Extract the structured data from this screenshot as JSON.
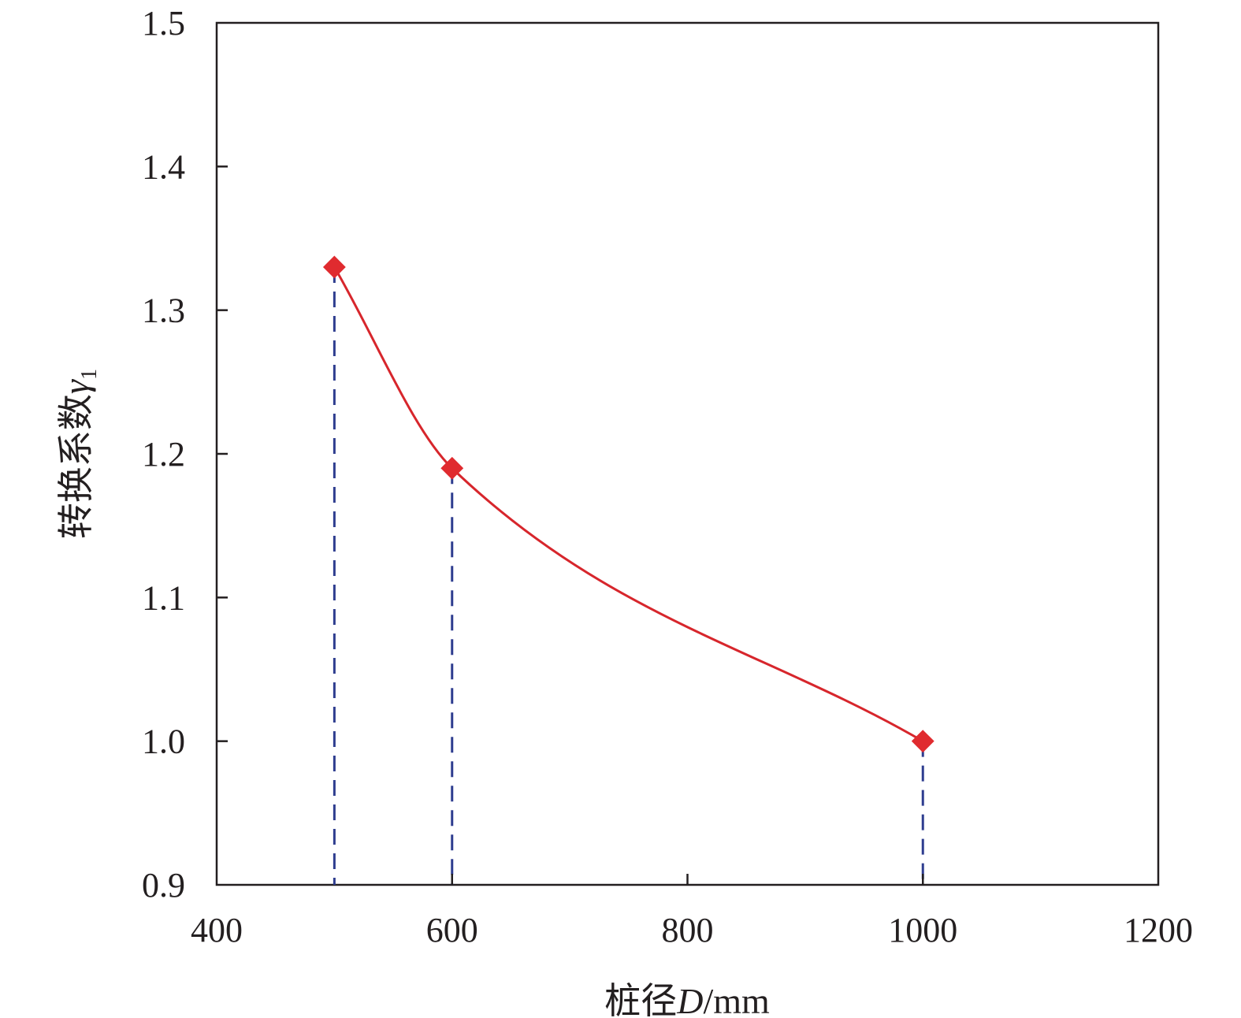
{
  "chart_data": {
    "type": "line",
    "x": [
      500,
      600,
      1000
    ],
    "series": [
      {
        "values": [
          1.33,
          1.19,
          1.0
        ]
      }
    ],
    "xlabel": {
      "prefix": "桩径",
      "variable": "D",
      "unit": "/mm"
    },
    "ylabel": {
      "prefix": "转换系数",
      "variable": "γ",
      "subscript": "1"
    },
    "xlim": [
      400,
      1200
    ],
    "ylim": [
      0.9,
      1.5
    ],
    "xticks": [
      400,
      600,
      800,
      1000,
      1200
    ],
    "xtick_labels": [
      "400",
      "600",
      "800",
      "1000",
      "1200"
    ],
    "yticks": [
      0.9,
      1.0,
      1.1,
      1.2,
      1.3,
      1.4,
      1.5
    ],
    "ytick_labels": [
      "0.9",
      "1.0",
      "1.1",
      "1.2",
      "1.3",
      "1.4",
      "1.5"
    ],
    "drop_lines": "dashed vertical lines from each point to the x axis",
    "grid": false,
    "legend": "none",
    "colors": {
      "line": "#d7262c",
      "marker": "#e02b2f",
      "drop_line": "#2e3d8f",
      "axis": "#231f20"
    }
  }
}
